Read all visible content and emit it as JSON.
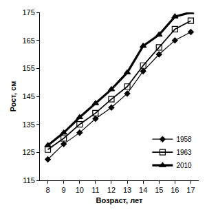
{
  "chart_data": {
    "type": "line",
    "x_label": "Возраст, лет",
    "y_label": "Рост, см",
    "x": [
      8,
      9,
      10,
      11,
      12,
      13,
      14,
      15,
      16,
      17
    ],
    "xlim": [
      7.5,
      17.5
    ],
    "xticks": [
      8,
      9,
      10,
      11,
      12,
      13,
      14,
      15,
      16,
      17
    ],
    "ylim": [
      115,
      175
    ],
    "yticks": [
      115,
      125,
      135,
      145,
      155,
      165,
      175
    ],
    "grid": false,
    "legend": "bottom right",
    "series": [
      {
        "name": "1958",
        "color": "#000000",
        "marker": "diamond",
        "line_style": "solid",
        "values": [
          122.5,
          128,
          132,
          137,
          141,
          146,
          154,
          160,
          165,
          168
        ]
      },
      {
        "name": "1963",
        "color": "#000000",
        "marker": "square-open",
        "line_style": "solid",
        "values": [
          126,
          130,
          135,
          139,
          144,
          148.5,
          156,
          162.5,
          169,
          172
        ]
      },
      {
        "name": "2010",
        "color": "#000000",
        "marker": "triangle-up",
        "line_style": "solid",
        "values": [
          127.5,
          132,
          137.5,
          142.5,
          147.5,
          153.5,
          163,
          167,
          173.5,
          175
        ]
      }
    ]
  }
}
